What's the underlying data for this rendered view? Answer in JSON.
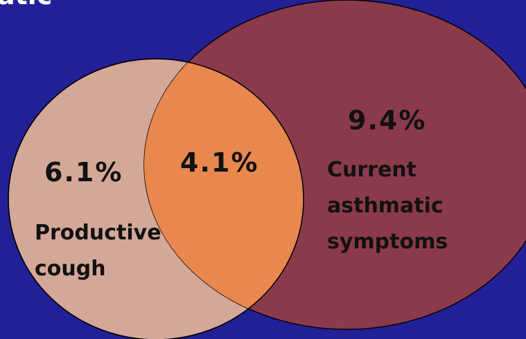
{
  "header": {
    "title": "atic"
  },
  "sets": [
    {
      "label_lines": [
        "Productive",
        "cough"
      ],
      "value": "6.1%"
    },
    {
      "label_lines": [
        "Current",
        "asthmatic",
        "symptoms"
      ],
      "value": "9.4%"
    }
  ],
  "intersection": {
    "value": "4.1%"
  }
}
